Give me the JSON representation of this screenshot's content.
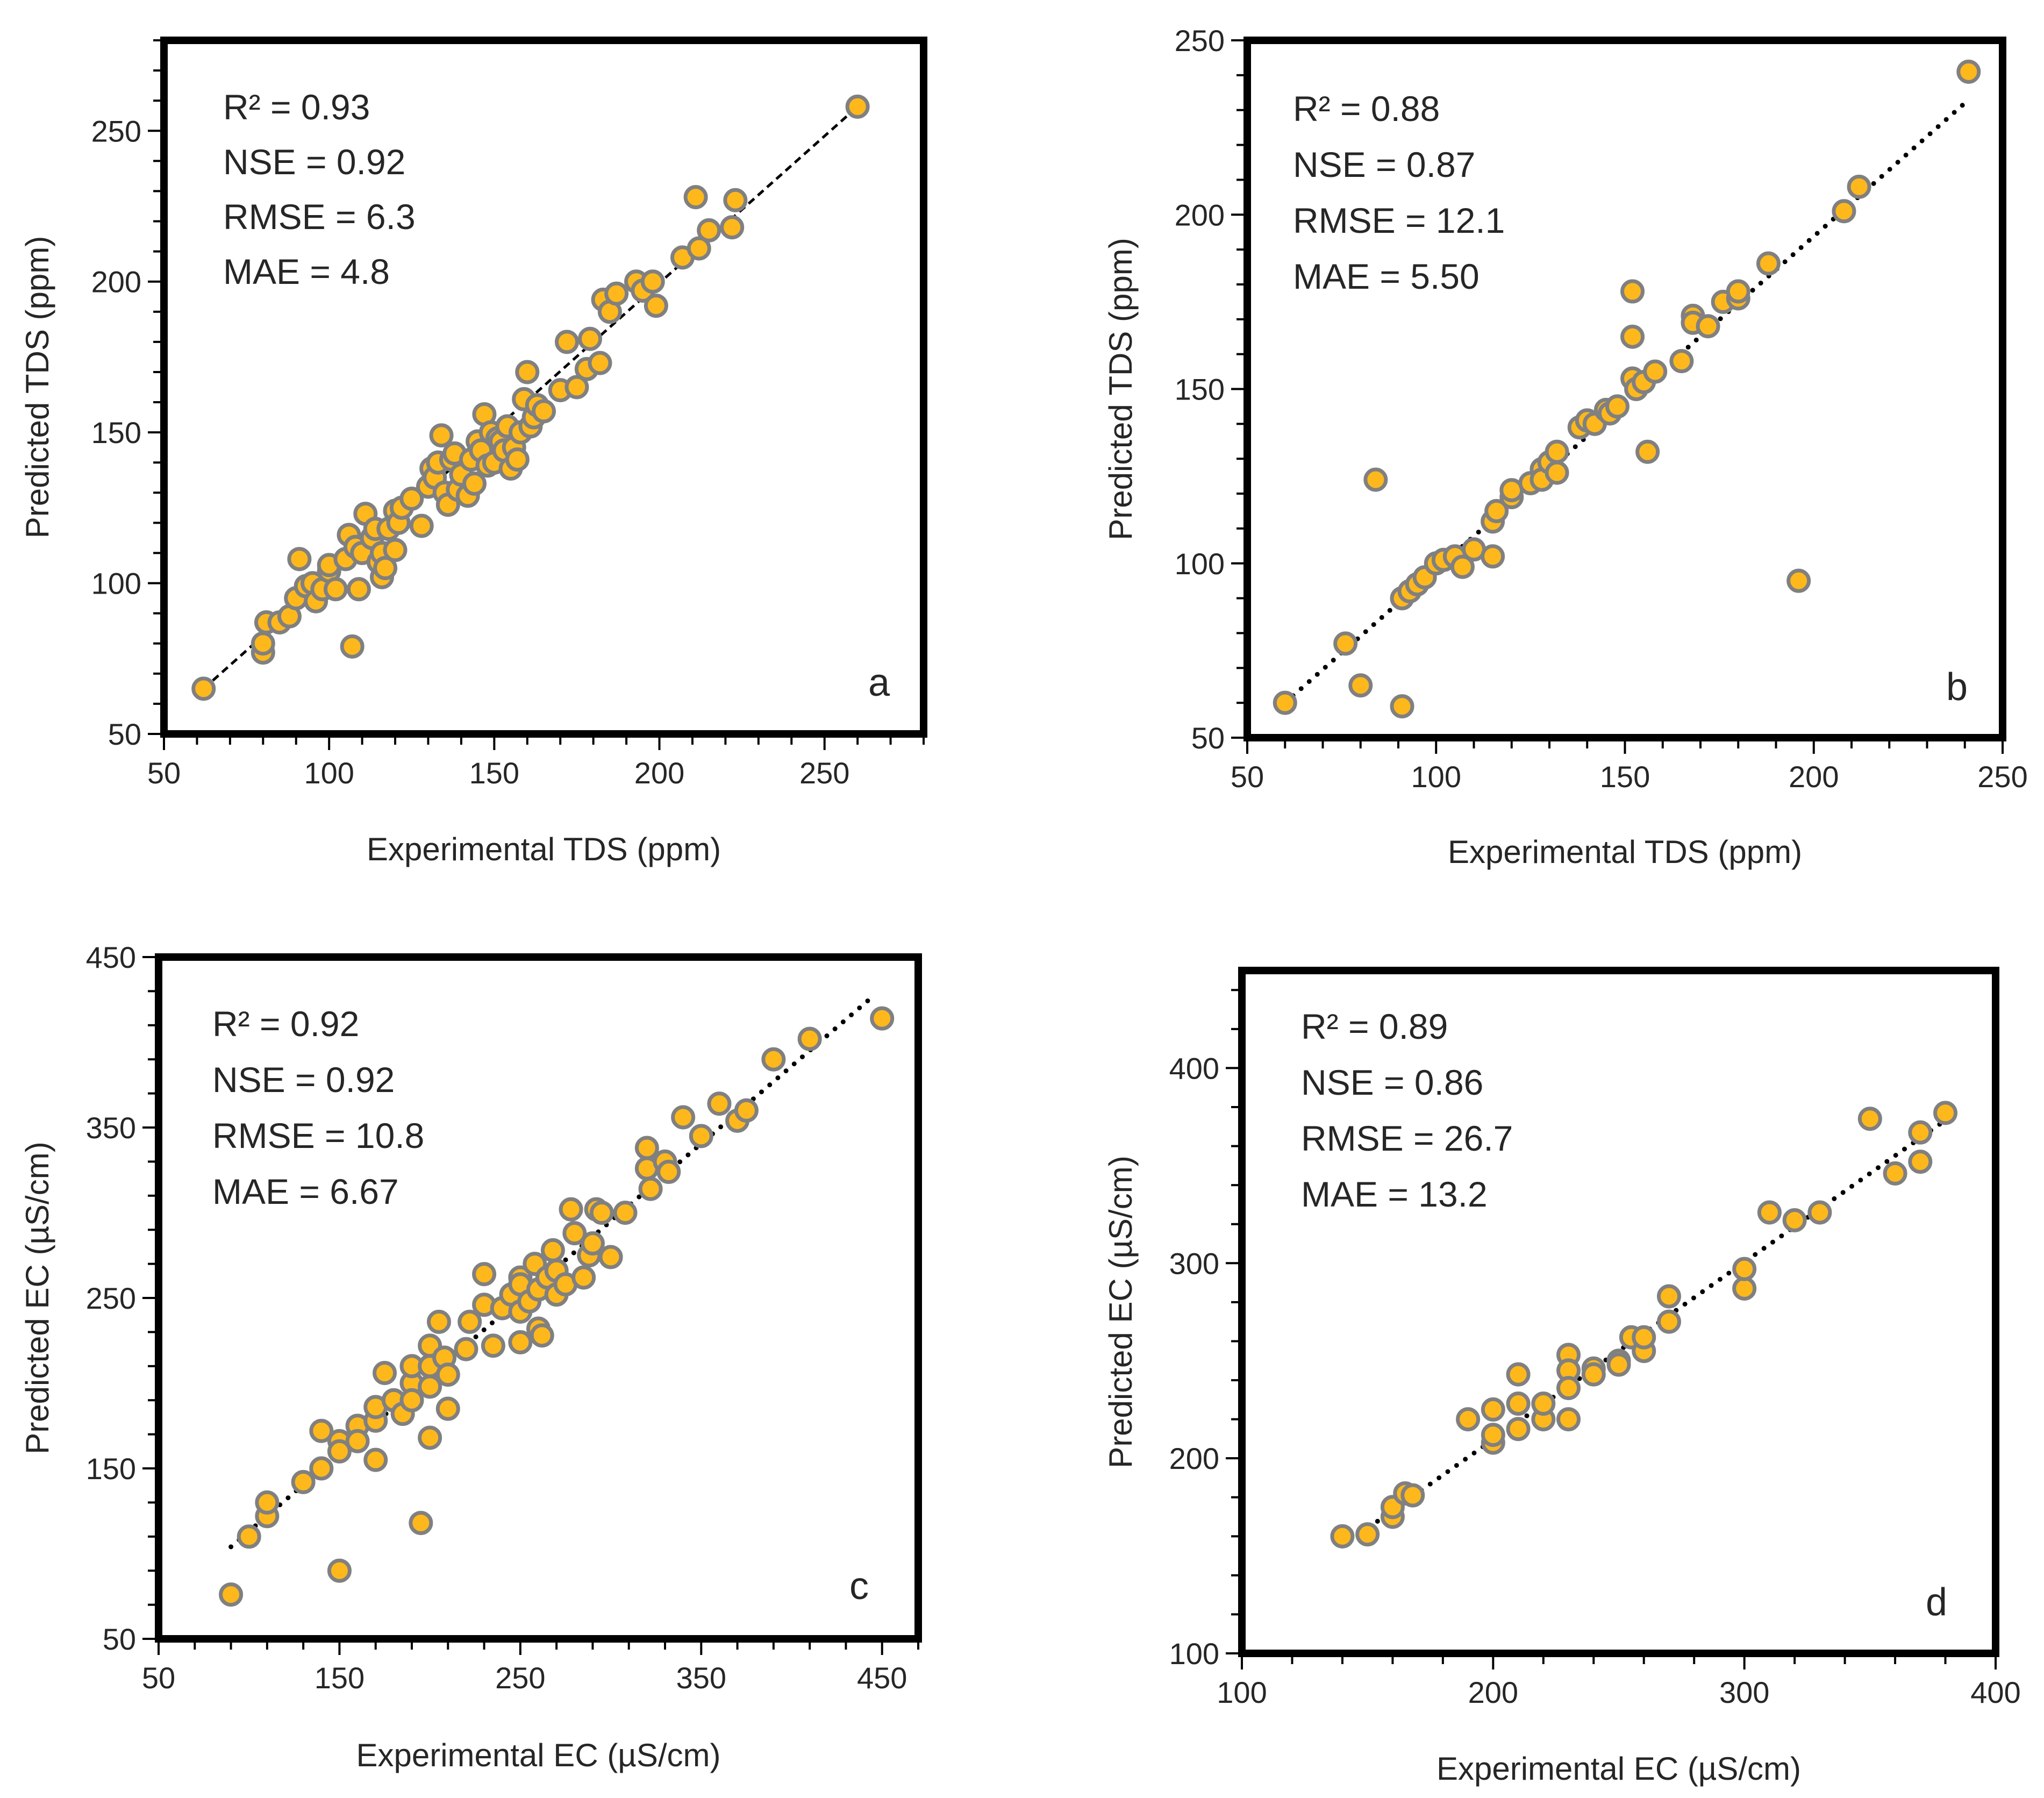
{
  "figure": {
    "marker_fill": "#FFB81C",
    "marker_stroke": "#808080",
    "frame_color": "#000000",
    "trend_color": "#000000",
    "text_color": "#262626"
  },
  "chart_data": [
    {
      "panel": "a",
      "type": "scatter",
      "xlabel": "Experimental TDS (ppm)",
      "ylabel": "Predicted TDS (ppm)",
      "xlim": [
        50,
        280
      ],
      "ylim": [
        50,
        280
      ],
      "xticks": [
        50,
        100,
        150,
        200,
        250
      ],
      "yticks": [
        50,
        100,
        150,
        200,
        250
      ],
      "minor_step": 10,
      "trendline": {
        "style": "dashed",
        "x": [
          62,
          260
        ],
        "y": [
          65,
          258
        ]
      },
      "stats": [
        "R² = 0.93",
        "NSE = 0.92",
        "RMSE = 6.3",
        "MAE = 4.8"
      ],
      "points": [
        [
          62,
          65
        ],
        [
          80,
          77
        ],
        [
          80,
          80
        ],
        [
          81,
          87
        ],
        [
          85,
          87
        ],
        [
          88,
          89
        ],
        [
          90,
          95
        ],
        [
          91,
          108
        ],
        [
          93,
          99
        ],
        [
          95,
          100
        ],
        [
          96,
          94
        ],
        [
          98,
          98
        ],
        [
          100,
          104
        ],
        [
          100,
          106
        ],
        [
          102,
          98
        ],
        [
          105,
          108
        ],
        [
          106,
          116
        ],
        [
          107,
          79
        ],
        [
          108,
          112
        ],
        [
          109,
          98
        ],
        [
          110,
          110
        ],
        [
          111,
          123
        ],
        [
          113,
          115
        ],
        [
          114,
          118
        ],
        [
          115,
          107
        ],
        [
          116,
          102
        ],
        [
          116,
          110
        ],
        [
          117,
          105
        ],
        [
          118,
          118
        ],
        [
          120,
          124
        ],
        [
          120,
          111
        ],
        [
          121,
          120
        ],
        [
          122,
          125
        ],
        [
          125,
          128
        ],
        [
          128,
          119
        ],
        [
          130,
          132
        ],
        [
          131,
          138
        ],
        [
          132,
          135
        ],
        [
          133,
          140
        ],
        [
          134,
          149
        ],
        [
          135,
          130
        ],
        [
          136,
          126
        ],
        [
          137,
          141
        ],
        [
          138,
          143
        ],
        [
          139,
          131
        ],
        [
          140,
          136
        ],
        [
          142,
          129
        ],
        [
          143,
          141
        ],
        [
          144,
          133
        ],
        [
          145,
          147
        ],
        [
          146,
          144
        ],
        [
          147,
          156
        ],
        [
          148,
          139
        ],
        [
          149,
          150
        ],
        [
          150,
          140
        ],
        [
          151,
          148
        ],
        [
          152,
          147
        ],
        [
          153,
          144
        ],
        [
          154,
          152
        ],
        [
          155,
          138
        ],
        [
          156,
          145
        ],
        [
          157,
          141
        ],
        [
          158,
          150
        ],
        [
          159,
          161
        ],
        [
          160,
          170
        ],
        [
          161,
          152
        ],
        [
          162,
          155
        ],
        [
          163,
          159
        ],
        [
          165,
          157
        ],
        [
          170,
          164
        ],
        [
          172,
          180
        ],
        [
          175,
          165
        ],
        [
          178,
          171
        ],
        [
          179,
          181
        ],
        [
          182,
          173
        ],
        [
          183,
          194
        ],
        [
          185,
          190
        ],
        [
          187,
          196
        ],
        [
          193,
          200
        ],
        [
          195,
          197
        ],
        [
          198,
          200
        ],
        [
          199,
          192
        ],
        [
          207,
          208
        ],
        [
          211,
          228
        ],
        [
          212,
          211
        ],
        [
          215,
          217
        ],
        [
          222,
          218
        ],
        [
          223,
          227
        ],
        [
          260,
          258
        ]
      ]
    },
    {
      "panel": "b",
      "type": "scatter",
      "xlabel": "Experimental TDS (ppm)",
      "ylabel": "Predicted TDS (ppm)",
      "xlim": [
        50,
        250
      ],
      "ylim": [
        50,
        250
      ],
      "xticks": [
        50,
        100,
        150,
        200,
        250
      ],
      "yticks": [
        50,
        100,
        150,
        200,
        250
      ],
      "minor_step": 10,
      "trendline": {
        "style": "dotted",
        "x": [
          60,
          240
        ],
        "y": [
          60,
          232
        ]
      },
      "stats": [
        "R² = 0.88",
        "NSE = 0.87",
        "RMSE = 12.1",
        "MAE = 5.50"
      ],
      "points": [
        [
          60,
          60
        ],
        [
          76,
          77
        ],
        [
          80,
          65
        ],
        [
          84,
          124
        ],
        [
          91,
          59
        ],
        [
          91,
          90
        ],
        [
          93,
          92
        ],
        [
          95,
          94
        ],
        [
          97,
          96
        ],
        [
          100,
          100
        ],
        [
          102,
          101
        ],
        [
          105,
          102
        ],
        [
          107,
          99
        ],
        [
          110,
          104
        ],
        [
          115,
          102
        ],
        [
          115,
          112
        ],
        [
          116,
          115
        ],
        [
          120,
          119
        ],
        [
          120,
          121
        ],
        [
          125,
          123
        ],
        [
          128,
          127
        ],
        [
          128,
          124
        ],
        [
          130,
          129
        ],
        [
          132,
          126
        ],
        [
          132,
          132
        ],
        [
          138,
          139
        ],
        [
          140,
          141
        ],
        [
          142,
          140
        ],
        [
          145,
          144
        ],
        [
          146,
          143
        ],
        [
          148,
          145
        ],
        [
          152,
          165
        ],
        [
          152,
          178
        ],
        [
          152,
          153
        ],
        [
          153,
          150
        ],
        [
          155,
          152
        ],
        [
          156,
          132
        ],
        [
          158,
          155
        ],
        [
          165,
          158
        ],
        [
          168,
          171
        ],
        [
          168,
          169
        ],
        [
          172,
          168
        ],
        [
          176,
          175
        ],
        [
          180,
          176
        ],
        [
          180,
          178
        ],
        [
          188,
          186
        ],
        [
          196,
          95
        ],
        [
          208,
          201
        ],
        [
          212,
          208
        ],
        [
          241,
          241
        ]
      ]
    },
    {
      "panel": "c",
      "type": "scatter",
      "xlabel": "Experimental EC (µS/cm)",
      "ylabel": "Predicted EC (µS/cm)",
      "xlim": [
        50,
        470
      ],
      "ylim": [
        50,
        450
      ],
      "xticks": [
        50,
        150,
        250,
        350,
        450
      ],
      "yticks": [
        50,
        150,
        250,
        350,
        450
      ],
      "minor_step": 20,
      "trendline": {
        "style": "dotted",
        "x": [
          90,
          445
        ],
        "y": [
          104,
          427
        ]
      },
      "stats": [
        "R² = 0.92",
        "NSE = 0.92",
        "RMSE = 10.8",
        "MAE = 6.67"
      ],
      "points": [
        [
          90,
          76
        ],
        [
          100,
          110
        ],
        [
          110,
          122
        ],
        [
          110,
          130
        ],
        [
          130,
          142
        ],
        [
          140,
          172
        ],
        [
          140,
          150
        ],
        [
          150,
          166
        ],
        [
          150,
          160
        ],
        [
          150,
          90
        ],
        [
          160,
          175
        ],
        [
          160,
          166
        ],
        [
          170,
          178
        ],
        [
          170,
          186
        ],
        [
          170,
          155
        ],
        [
          175,
          206
        ],
        [
          180,
          190
        ],
        [
          185,
          182
        ],
        [
          190,
          200
        ],
        [
          190,
          190
        ],
        [
          190,
          210
        ],
        [
          195,
          118
        ],
        [
          200,
          222
        ],
        [
          200,
          210
        ],
        [
          200,
          168
        ],
        [
          200,
          198
        ],
        [
          205,
          236
        ],
        [
          208,
          215
        ],
        [
          210,
          185
        ],
        [
          210,
          205
        ],
        [
          220,
          220
        ],
        [
          222,
          236
        ],
        [
          230,
          264
        ],
        [
          230,
          246
        ],
        [
          235,
          222
        ],
        [
          240,
          244
        ],
        [
          245,
          252
        ],
        [
          250,
          262
        ],
        [
          250,
          258
        ],
        [
          250,
          242
        ],
        [
          250,
          224
        ],
        [
          255,
          248
        ],
        [
          258,
          270
        ],
        [
          260,
          255
        ],
        [
          260,
          232
        ],
        [
          262,
          228
        ],
        [
          265,
          262
        ],
        [
          268,
          278
        ],
        [
          270,
          252
        ],
        [
          270,
          266
        ],
        [
          275,
          258
        ],
        [
          278,
          302
        ],
        [
          280,
          288
        ],
        [
          285,
          262
        ],
        [
          288,
          275
        ],
        [
          290,
          282
        ],
        [
          292,
          302
        ],
        [
          295,
          300
        ],
        [
          300,
          274
        ],
        [
          308,
          300
        ],
        [
          320,
          338
        ],
        [
          320,
          326
        ],
        [
          322,
          314
        ],
        [
          330,
          330
        ],
        [
          332,
          324
        ],
        [
          340,
          356
        ],
        [
          350,
          345
        ],
        [
          360,
          364
        ],
        [
          370,
          354
        ],
        [
          375,
          360
        ],
        [
          390,
          390
        ],
        [
          410,
          402
        ],
        [
          450,
          414
        ]
      ]
    },
    {
      "panel": "d",
      "type": "scatter",
      "xlabel": "Experimental EC (µS/cm)",
      "ylabel": "Predicted EC (µS/cm)",
      "xlim": [
        100,
        400
      ],
      "ylim": [
        100,
        450
      ],
      "xticks": [
        100,
        200,
        300,
        400
      ],
      "yticks": [
        100,
        200,
        300,
        400
      ],
      "minor_step": 20,
      "trendline": {
        "style": "dotted",
        "x": [
          140,
          383
        ],
        "y": [
          155,
          376
        ]
      },
      "stats": [
        "R² = 0.89",
        "NSE = 0.86",
        "RMSE = 26.7",
        "MAE = 13.2"
      ],
      "points": [
        [
          140,
          160
        ],
        [
          150,
          161
        ],
        [
          160,
          170
        ],
        [
          160,
          175
        ],
        [
          165,
          182
        ],
        [
          168,
          181
        ],
        [
          190,
          220
        ],
        [
          200,
          208
        ],
        [
          200,
          212
        ],
        [
          200,
          225
        ],
        [
          210,
          215
        ],
        [
          210,
          243
        ],
        [
          210,
          228
        ],
        [
          220,
          220
        ],
        [
          220,
          228
        ],
        [
          230,
          220
        ],
        [
          230,
          253
        ],
        [
          230,
          245
        ],
        [
          230,
          236
        ],
        [
          240,
          246
        ],
        [
          240,
          243
        ],
        [
          250,
          250
        ],
        [
          250,
          248
        ],
        [
          255,
          262
        ],
        [
          260,
          255
        ],
        [
          260,
          262
        ],
        [
          270,
          283
        ],
        [
          270,
          270
        ],
        [
          300,
          287
        ],
        [
          300,
          297
        ],
        [
          310,
          326
        ],
        [
          320,
          322
        ],
        [
          330,
          326
        ],
        [
          350,
          374
        ],
        [
          360,
          346
        ],
        [
          370,
          367
        ],
        [
          370,
          352
        ],
        [
          380,
          377
        ]
      ]
    }
  ]
}
